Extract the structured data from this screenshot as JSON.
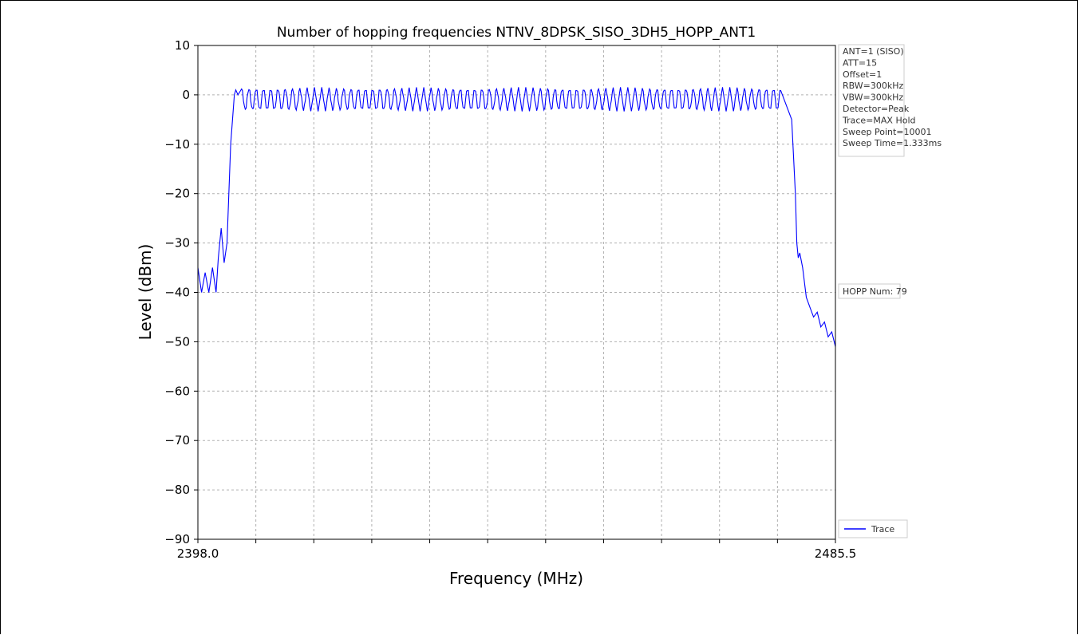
{
  "chart_data": {
    "type": "line",
    "title": "Number of hopping frequencies NTNV_8DPSK_SISO_3DH5_HOPP_ANT1",
    "xlabel": "Frequency (MHz)",
    "ylabel": "Level (dBm)",
    "xlim": [
      2398.0,
      2485.5
    ],
    "ylim": [
      -90,
      10
    ],
    "x_tick_labels": [
      "2398.0",
      "2485.5"
    ],
    "y_ticks": [
      10,
      0,
      -10,
      -20,
      -30,
      -40,
      -50,
      -60,
      -70,
      -80,
      -90
    ],
    "y_tick_labels": [
      "10",
      "0",
      "−10",
      "−20",
      "−30",
      "−40",
      "−50",
      "−60",
      "−70",
      "−80",
      "−90"
    ],
    "x_grid_divisions": 11,
    "grid": true,
    "legend": {
      "placement": "lower-right",
      "entries": [
        "Trace"
      ]
    },
    "series": [
      {
        "name": "Trace",
        "color": "#0000ff",
        "x": [
          2398.0,
          2398.5,
          2399.0,
          2399.5,
          2400.0,
          2400.5,
          2400.8,
          2401.2,
          2401.6,
          2402.0,
          2402.5,
          2403.0,
          2403.2,
          2403.5,
          2404.0,
          2410.0,
          2420.0,
          2430.0,
          2440.0,
          2450.0,
          2460.0,
          2470.0,
          2478.0,
          2479.5,
          2480.0,
          2480.2,
          2480.4,
          2480.6,
          2481.0,
          2481.5,
          2482.0,
          2482.5,
          2483.0,
          2483.5,
          2484.0,
          2484.5,
          2485.0,
          2485.5
        ],
        "y": [
          -35,
          -40,
          -36,
          -40,
          -35,
          -40,
          -33,
          -27,
          -34,
          -30,
          -10,
          0,
          1,
          0,
          0,
          0,
          0,
          0,
          0,
          0,
          0,
          0,
          0,
          -5,
          -20,
          -30,
          -33,
          -32,
          -35,
          -41,
          -43,
          -45,
          -44,
          -47,
          -46,
          -49,
          -48,
          -51
        ],
        "hop_channels": {
          "count": 79,
          "start": 2402.0,
          "step": 1.0,
          "peak": 1.2,
          "trough": -3.0
        }
      }
    ],
    "info_box": [
      "ANT=1 (SISO)",
      "ATT=15",
      "Offset=1",
      "RBW=300kHz",
      "VBW=300kHz",
      "Detector=Peak",
      "Trace=MAX Hold",
      "Sweep Point=10001",
      "Sweep Time=1.333ms"
    ],
    "annotation": "HOPP Num: 79"
  }
}
